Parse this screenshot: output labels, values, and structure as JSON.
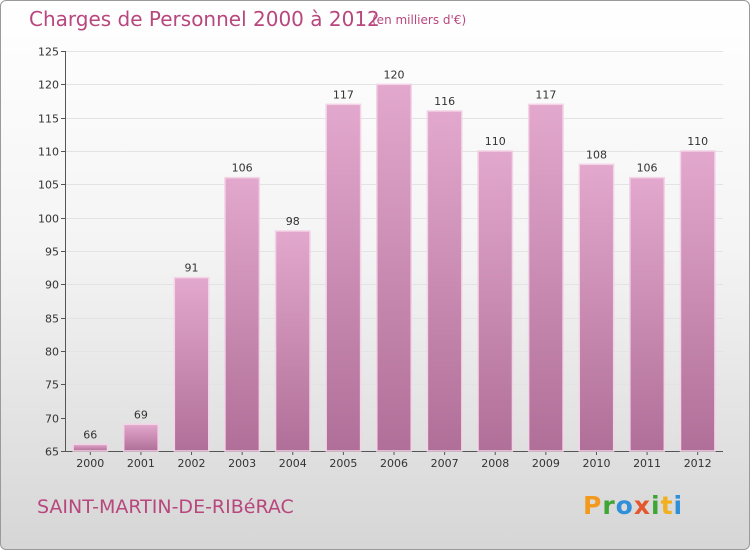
{
  "header": {
    "title": "Charges de Personnel 2000 à 2012",
    "unit": "(en milliers d'€)"
  },
  "footer": {
    "place": "SAINT-MARTIN-DE-RIBéRAC",
    "logo_letters": [
      "P",
      "r",
      "o",
      "x",
      "i",
      "t",
      "i"
    ]
  },
  "colors": {
    "bar_fill_top": "#e3a8cd",
    "bar_fill_bottom": "#b06f98",
    "text_accent": "#b8477e"
  },
  "chart_data": {
    "type": "bar",
    "title": "Charges de Personnel 2000 à 2012",
    "subtitle": "(en milliers d'€)",
    "categories": [
      "2000",
      "2001",
      "2002",
      "2003",
      "2004",
      "2005",
      "2006",
      "2007",
      "2008",
      "2009",
      "2010",
      "2011",
      "2012"
    ],
    "values": [
      66,
      69,
      91,
      106,
      98,
      117,
      120,
      116,
      110,
      117,
      108,
      106,
      110
    ],
    "ylim": [
      65,
      125
    ],
    "yticks": [
      65,
      70,
      75,
      80,
      85,
      90,
      95,
      100,
      105,
      110,
      115,
      120,
      125
    ],
    "grid": "horizontal",
    "legend": "none"
  }
}
